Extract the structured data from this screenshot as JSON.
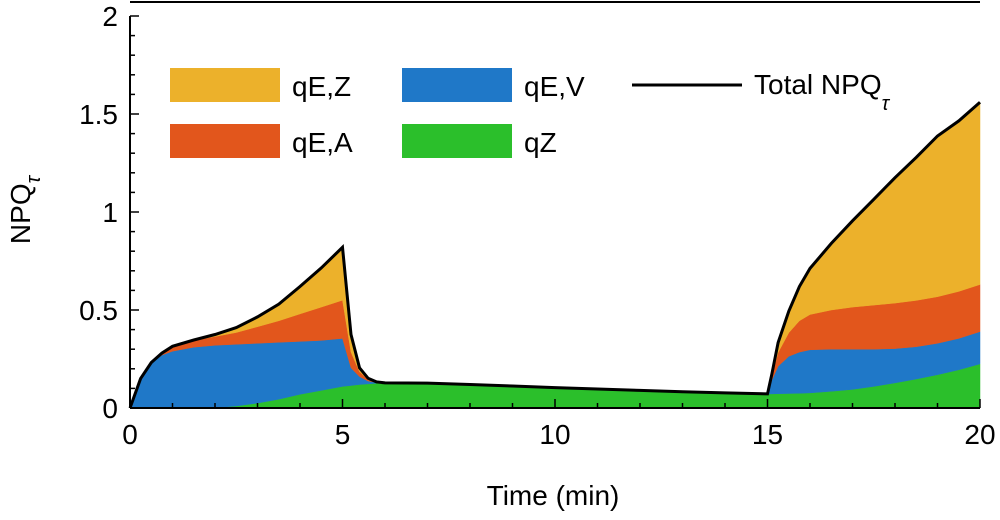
{
  "chart_data": {
    "type": "area",
    "stacked": true,
    "xlabel": "Time (min)",
    "ylabel": {
      "base": "NPQ",
      "subscript": "τ"
    },
    "xlim": [
      0,
      20
    ],
    "ylim": [
      0,
      2
    ],
    "xticks": [
      0,
      5,
      10,
      15,
      20
    ],
    "yticks": [
      0,
      0.5,
      1,
      1.5,
      2
    ],
    "ytick_labels": [
      "0",
      "0.5",
      "1",
      "1.5",
      "2"
    ],
    "grid": false,
    "legend_position": "top",
    "x": [
      0,
      0.25,
      0.5,
      0.75,
      1,
      1.5,
      2,
      2.5,
      3,
      3.5,
      4,
      4.5,
      5,
      5.2,
      5.4,
      5.6,
      5.8,
      6,
      7,
      8,
      9,
      10,
      11,
      12,
      13,
      14,
      15,
      15.1,
      15.25,
      15.5,
      15.75,
      16,
      16.5,
      17,
      17.5,
      18,
      18.5,
      19,
      19.5,
      20
    ],
    "series": [
      {
        "name": "qZ",
        "color": "#2bbf2b",
        "values": [
          0,
          0,
          0,
          0,
          0,
          0,
          0.002,
          0.01,
          0.025,
          0.045,
          0.07,
          0.09,
          0.11,
          0.115,
          0.12,
          0.123,
          0.126,
          0.128,
          0.127,
          0.12,
          0.112,
          0.104,
          0.097,
          0.09,
          0.083,
          0.077,
          0.072,
          0.072,
          0.073,
          0.074,
          0.075,
          0.077,
          0.085,
          0.095,
          0.11,
          0.128,
          0.148,
          0.17,
          0.195,
          0.225
        ]
      },
      {
        "name": "qE,V",
        "color": "#1f78c8",
        "values": [
          0,
          0.15,
          0.23,
          0.27,
          0.29,
          0.31,
          0.318,
          0.315,
          0.305,
          0.29,
          0.27,
          0.255,
          0.245,
          0.09,
          0.04,
          0.015,
          0.004,
          0,
          0,
          0,
          0,
          0,
          0,
          0,
          0,
          0,
          0,
          0.07,
          0.14,
          0.19,
          0.21,
          0.22,
          0.215,
          0.205,
          0.19,
          0.175,
          0.165,
          0.16,
          0.16,
          0.165
        ]
      },
      {
        "name": "qE,A",
        "color": "#e2561c",
        "values": [
          0,
          0,
          0.002,
          0.01,
          0.025,
          0.035,
          0.045,
          0.06,
          0.085,
          0.11,
          0.14,
          0.17,
          0.195,
          0.08,
          0.025,
          0.008,
          0.002,
          0,
          0,
          0,
          0,
          0,
          0,
          0,
          0,
          0,
          0,
          0.02,
          0.07,
          0.12,
          0.16,
          0.18,
          0.2,
          0.215,
          0.225,
          0.232,
          0.236,
          0.238,
          0.24,
          0.24
        ]
      },
      {
        "name": "qE,Z",
        "color": "#ecb12b",
        "values": [
          0,
          0,
          0,
          0,
          0,
          0.002,
          0.01,
          0.025,
          0.05,
          0.085,
          0.14,
          0.2,
          0.27,
          0.09,
          0.02,
          0.006,
          0.001,
          0,
          0,
          0,
          0,
          0,
          0,
          0,
          0,
          0,
          0,
          0.01,
          0.05,
          0.11,
          0.175,
          0.235,
          0.34,
          0.44,
          0.54,
          0.64,
          0.73,
          0.82,
          0.87,
          0.93
        ]
      }
    ],
    "total": {
      "name": "Total NPQ",
      "subscript": "τ",
      "color": "#000000"
    },
    "legend_order": [
      "qE,Z",
      "qE,V",
      "qE,A",
      "qZ"
    ]
  }
}
